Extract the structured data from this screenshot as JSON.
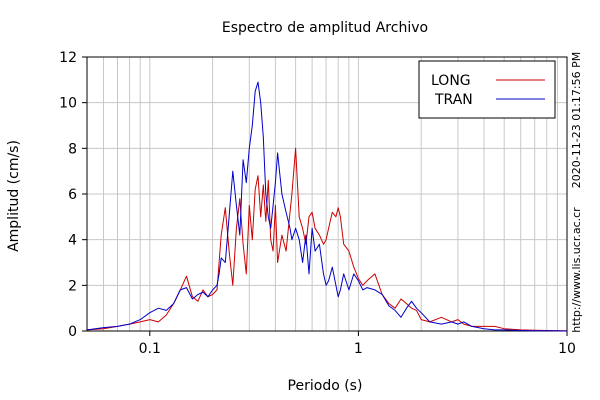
{
  "chart_data": {
    "type": "line",
    "title": "Espectro de amplitud Archivo",
    "xlabel": "Periodo (s)",
    "ylabel": "Amplitud (cm/s)",
    "xscale": "log",
    "xlim": [
      0.05,
      10
    ],
    "ylim": [
      0,
      12
    ],
    "xticks": [
      0.1,
      1,
      10
    ],
    "xtick_labels": [
      "0.1",
      "1",
      "10"
    ],
    "yticks": [
      0,
      2,
      4,
      6,
      8,
      10,
      12
    ],
    "ytick_labels": [
      "0",
      "2",
      "4",
      "6",
      "8",
      "10",
      "12"
    ],
    "grid": true,
    "legend_position": "top-right",
    "series": [
      {
        "name": "LONG",
        "color": "#cc0000",
        "x": [
          0.05,
          0.06,
          0.07,
          0.08,
          0.09,
          0.1,
          0.11,
          0.12,
          0.13,
          0.14,
          0.15,
          0.16,
          0.17,
          0.18,
          0.19,
          0.2,
          0.21,
          0.215,
          0.22,
          0.23,
          0.24,
          0.25,
          0.26,
          0.27,
          0.28,
          0.29,
          0.3,
          0.31,
          0.32,
          0.33,
          0.34,
          0.35,
          0.36,
          0.37,
          0.38,
          0.39,
          0.4,
          0.41,
          0.43,
          0.45,
          0.47,
          0.48,
          0.5,
          0.52,
          0.54,
          0.56,
          0.58,
          0.6,
          0.62,
          0.65,
          0.68,
          0.7,
          0.72,
          0.75,
          0.78,
          0.8,
          0.82,
          0.85,
          0.9,
          0.95,
          1.0,
          1.05,
          1.1,
          1.2,
          1.3,
          1.4,
          1.5,
          1.6,
          1.7,
          1.8,
          1.9,
          2.0,
          2.2,
          2.5,
          2.8,
          3.0,
          3.2,
          3.5,
          4.0,
          4.5,
          5.0,
          6.0,
          7.0,
          8.0,
          10.0
        ],
        "y": [
          0.05,
          0.1,
          0.2,
          0.3,
          0.4,
          0.5,
          0.4,
          0.7,
          1.2,
          1.8,
          2.4,
          1.5,
          1.3,
          1.8,
          1.5,
          1.6,
          1.8,
          3.0,
          4.2,
          5.4,
          3.5,
          2.0,
          4.5,
          5.8,
          3.8,
          2.5,
          5.5,
          4.0,
          6.2,
          6.8,
          5.0,
          6.4,
          4.8,
          6.6,
          4.0,
          3.5,
          5.5,
          3.0,
          4.2,
          3.5,
          5.2,
          6.0,
          8.0,
          5.0,
          4.5,
          3.8,
          5.0,
          5.2,
          4.5,
          4.2,
          3.8,
          4.0,
          4.5,
          5.2,
          5.0,
          5.4,
          5.0,
          3.8,
          3.5,
          2.8,
          2.3,
          2.0,
          2.2,
          2.5,
          1.6,
          1.2,
          1.0,
          1.4,
          1.2,
          1.0,
          0.9,
          0.5,
          0.4,
          0.6,
          0.4,
          0.5,
          0.3,
          0.2,
          0.2,
          0.2,
          0.1,
          0.05,
          0.03,
          0.02,
          0.01
        ]
      },
      {
        "name": "TRAN",
        "color": "#0000cc",
        "x": [
          0.05,
          0.06,
          0.07,
          0.08,
          0.09,
          0.1,
          0.11,
          0.12,
          0.13,
          0.14,
          0.15,
          0.16,
          0.17,
          0.18,
          0.19,
          0.2,
          0.21,
          0.215,
          0.22,
          0.23,
          0.24,
          0.25,
          0.26,
          0.27,
          0.28,
          0.29,
          0.3,
          0.31,
          0.32,
          0.33,
          0.34,
          0.35,
          0.36,
          0.37,
          0.38,
          0.39,
          0.4,
          0.41,
          0.43,
          0.45,
          0.47,
          0.48,
          0.5,
          0.52,
          0.54,
          0.56,
          0.58,
          0.6,
          0.62,
          0.65,
          0.68,
          0.7,
          0.72,
          0.75,
          0.78,
          0.8,
          0.82,
          0.85,
          0.9,
          0.95,
          1.0,
          1.05,
          1.1,
          1.2,
          1.3,
          1.4,
          1.5,
          1.6,
          1.7,
          1.8,
          1.9,
          2.0,
          2.2,
          2.5,
          2.8,
          3.0,
          3.2,
          3.5,
          4.0,
          4.5,
          5.0,
          6.0,
          7.0,
          8.0,
          10.0
        ],
        "y": [
          0.05,
          0.15,
          0.2,
          0.3,
          0.5,
          0.8,
          1.0,
          0.9,
          1.2,
          1.8,
          1.9,
          1.4,
          1.6,
          1.7,
          1.5,
          1.8,
          2.0,
          2.5,
          3.2,
          3.0,
          5.0,
          7.0,
          5.5,
          4.2,
          7.5,
          6.5,
          8.0,
          9.0,
          10.5,
          10.9,
          10.0,
          8.5,
          6.0,
          5.0,
          4.5,
          5.5,
          6.5,
          7.8,
          6.0,
          5.2,
          4.5,
          4.0,
          4.5,
          4.0,
          3.0,
          4.2,
          2.5,
          4.5,
          3.5,
          3.8,
          2.5,
          2.0,
          2.2,
          2.8,
          2.0,
          1.5,
          1.8,
          2.5,
          1.8,
          2.5,
          2.2,
          1.8,
          1.9,
          1.8,
          1.6,
          1.1,
          0.9,
          0.6,
          1.0,
          1.3,
          1.0,
          0.8,
          0.4,
          0.3,
          0.4,
          0.3,
          0.4,
          0.2,
          0.1,
          0.05,
          0.05,
          0.02,
          0.01,
          0.01,
          0.0
        ]
      }
    ],
    "annotations": [
      "2020-11-23 01:17:56 PM",
      "http://www.lis.ucr.ac.cr"
    ]
  }
}
